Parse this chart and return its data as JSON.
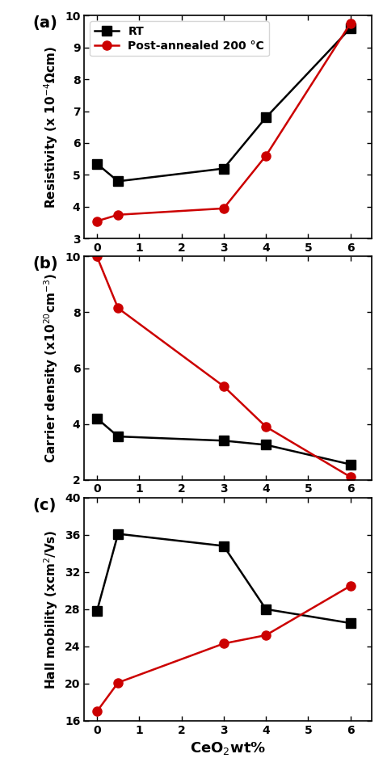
{
  "x": [
    0,
    0.5,
    3,
    4,
    6
  ],
  "resistivity_RT": [
    5.35,
    4.8,
    5.2,
    6.8,
    9.6
  ],
  "resistivity_PA": [
    3.55,
    3.75,
    3.95,
    5.6,
    9.75
  ],
  "carrier_RT": [
    4.2,
    3.55,
    3.4,
    3.25,
    2.55
  ],
  "carrier_PA": [
    10.0,
    8.15,
    5.35,
    3.9,
    2.1
  ],
  "mobility_RT": [
    27.8,
    36.1,
    34.8,
    28.0,
    26.5
  ],
  "mobility_PA": [
    17.0,
    20.1,
    24.3,
    25.2,
    30.5
  ],
  "color_RT": "#000000",
  "color_PA": "#cc0000",
  "marker_RT": "s",
  "marker_PA": "o",
  "label_RT": "RT",
  "label_PA": "Post-annealed 200 °C",
  "res_ylabel": "Resistivity (x 10$^{-4}$Ωcm)",
  "car_ylabel": "Carrier density (x10$^{20}$cm$^{-3}$)",
  "mob_ylabel": "Hall mobility (xcm$^2$/Vs)",
  "xlabel": "CeO$_2$wt%",
  "res_ylim": [
    3,
    10
  ],
  "car_ylim": [
    2,
    10
  ],
  "mob_ylim": [
    16,
    40
  ],
  "res_yticks": [
    3,
    4,
    5,
    6,
    7,
    8,
    9,
    10
  ],
  "car_yticks": [
    2,
    4,
    6,
    8,
    10
  ],
  "mob_yticks": [
    16,
    20,
    24,
    28,
    32,
    36,
    40
  ],
  "xlim": [
    -0.3,
    6.5
  ],
  "xticks": [
    0,
    1,
    2,
    3,
    4,
    5,
    6
  ],
  "panel_labels": [
    "(a)",
    "(b)",
    "(c)"
  ],
  "linewidth": 1.8,
  "markersize": 8,
  "tick_fontsize": 10,
  "label_fontsize": 11,
  "panel_fontsize": 14
}
